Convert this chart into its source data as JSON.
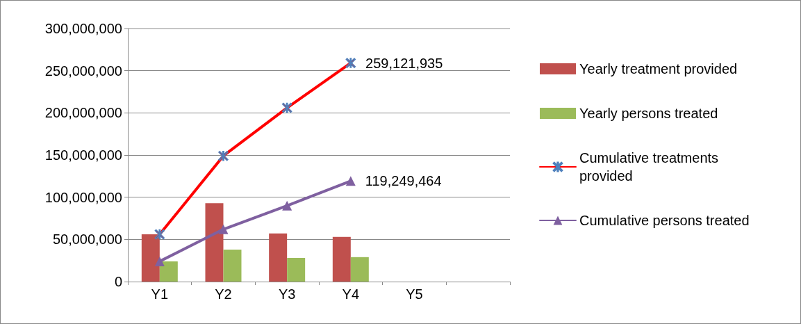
{
  "chart_data": {
    "type": "bar",
    "categories": [
      "Y1",
      "Y2",
      "Y3",
      "Y4",
      "Y5",
      null
    ],
    "series": [
      {
        "name": "Yearly treatment provided",
        "color": "#c0504d",
        "values": [
          56000000,
          93000000,
          57000000,
          53000000,
          null,
          null
        ]
      },
      {
        "name": "Yearly persons treated",
        "color": "#9bbb59",
        "values": [
          24000000,
          38000000,
          28000000,
          29000000,
          null,
          null
        ]
      },
      {
        "name": "Cumulative treatments provided",
        "type": "line",
        "color": "#ff0000",
        "marker": "cross",
        "values": [
          56000000,
          149000000,
          206000000,
          259121935,
          null,
          null
        ],
        "value_labels": [
          null,
          null,
          null,
          "259,121,935",
          null,
          null
        ]
      },
      {
        "name": "Cumulative persons treated",
        "type": "line",
        "color": "#7f60a0",
        "marker": "triangle",
        "values": [
          24000000,
          62000000,
          90000000,
          119249464,
          null,
          null
        ],
        "value_labels": [
          null,
          null,
          null,
          "119,249,464",
          null,
          null
        ]
      }
    ],
    "ylim": [
      0,
      300000000
    ],
    "yticks": [
      0,
      {
        "value": 50000000,
        "label": "50,000,000"
      },
      {
        "value": 100000000,
        "label": "100,000,000"
      },
      {
        "value": 150000000,
        "label": "150,000,000"
      },
      {
        "value": 200000000,
        "label": "200,000,000"
      },
      {
        "value": 250000000,
        "label": "250,000,000"
      },
      {
        "value": 300000000,
        "label": "300,000,000"
      }
    ],
    "grid": "y",
    "legend": "right",
    "line_style": "solid"
  }
}
